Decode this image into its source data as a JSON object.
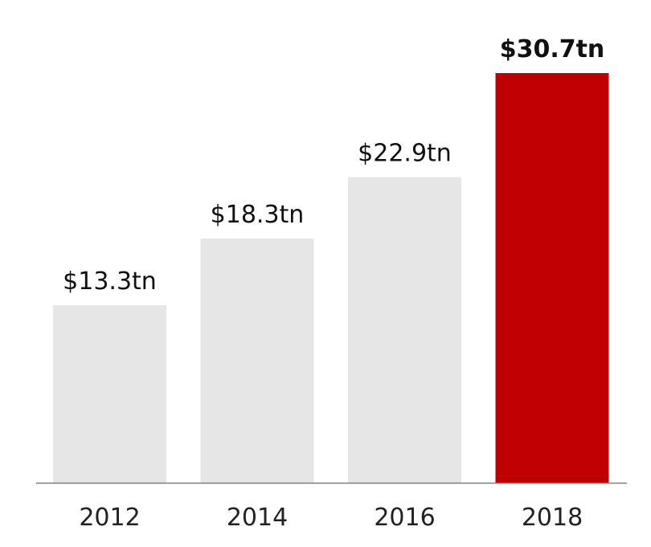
{
  "chart_data": {
    "type": "bar",
    "categories": [
      "2012",
      "2014",
      "2016",
      "2018"
    ],
    "values": [
      13.3,
      18.3,
      22.9,
      30.7
    ],
    "value_labels": [
      "$13.3tn",
      "$18.3tn",
      "$22.9tn",
      "$30.7tn"
    ],
    "highlight_index": 3,
    "colors": {
      "default": "#e6e6e6",
      "highlight": "#c00000",
      "axis": "#7f7f7f"
    },
    "grid": false,
    "legend": "none",
    "ylim": [
      0,
      30.7
    ]
  }
}
